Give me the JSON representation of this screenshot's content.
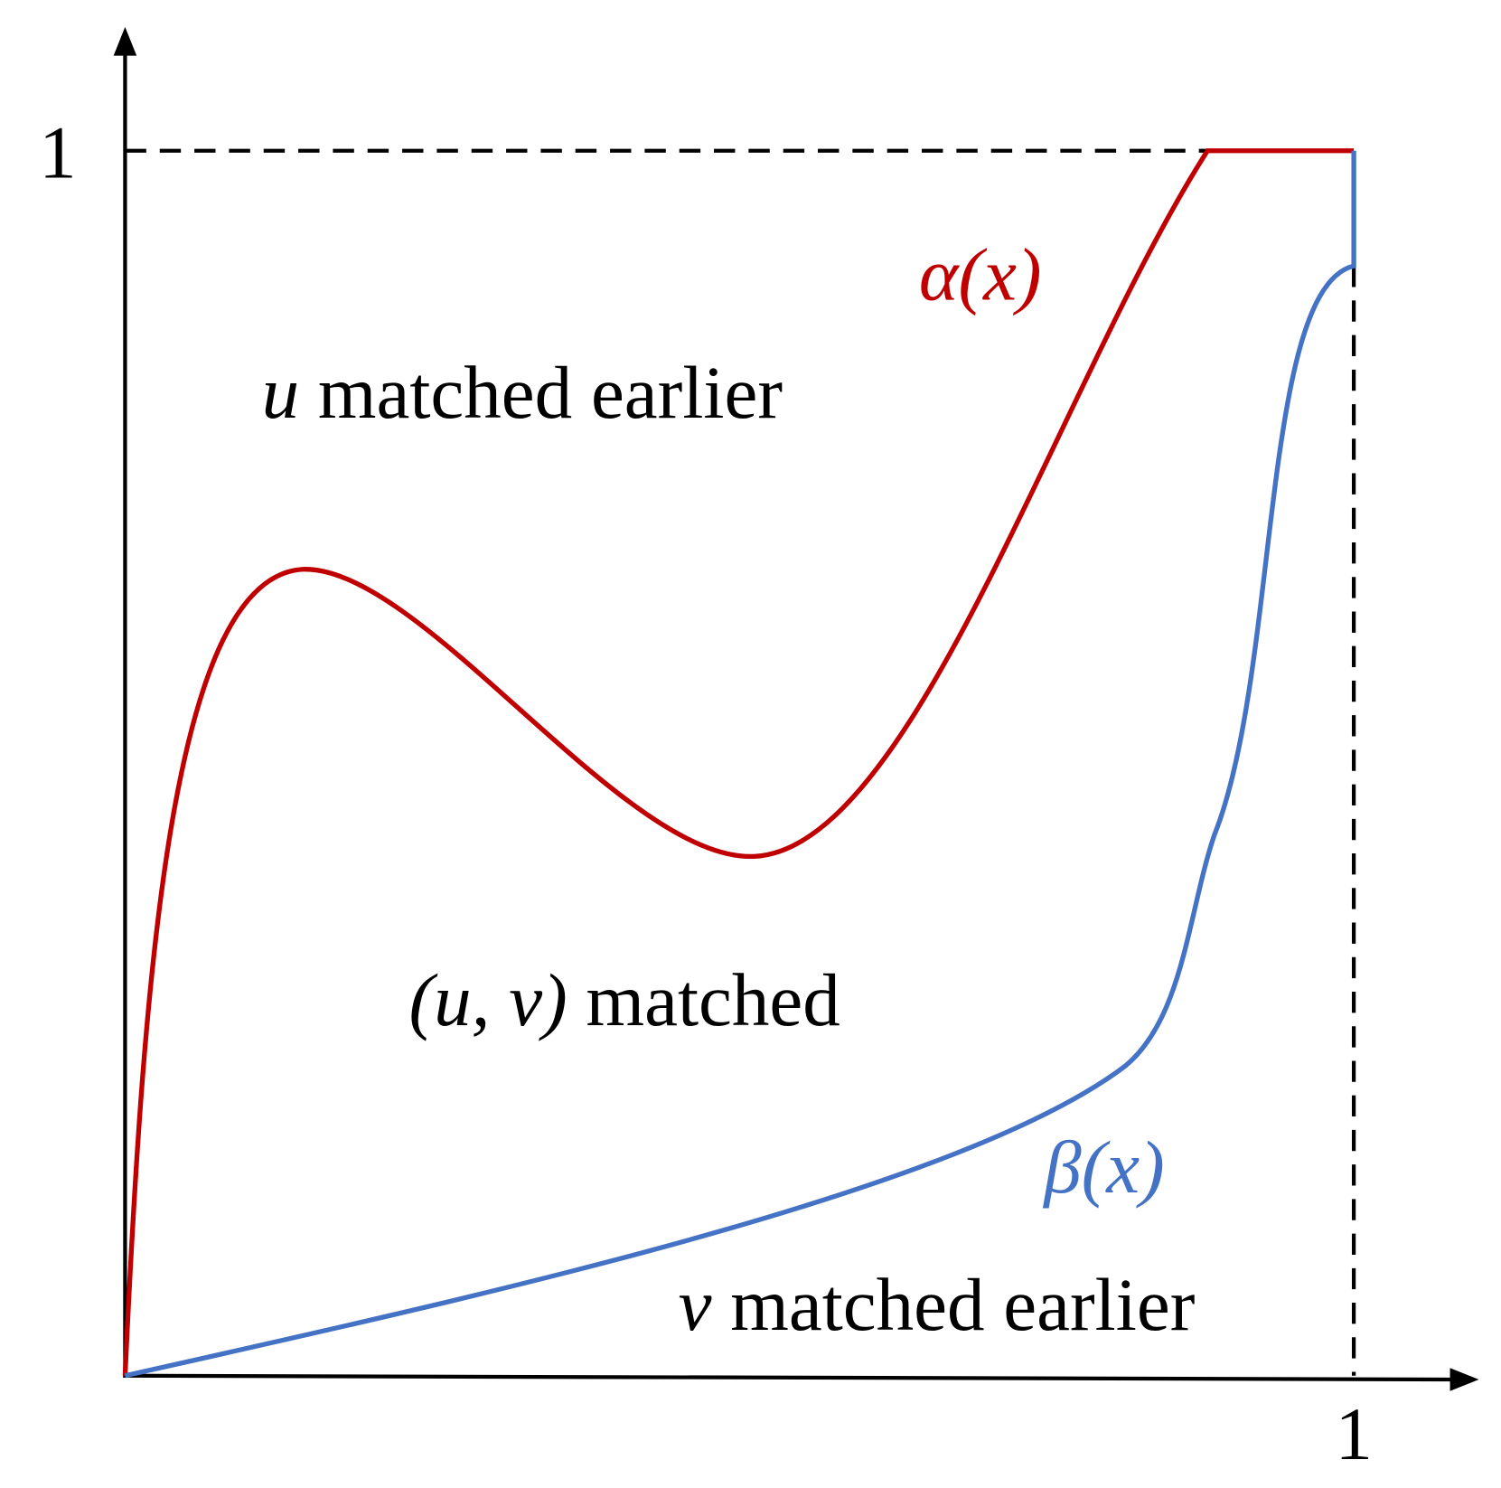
{
  "axes": {
    "y_label": "1",
    "x_label": "1"
  },
  "curves": [
    {
      "label": "α(x)"
    },
    {
      "label": "β(x)"
    }
  ],
  "regions": [
    {
      "variable": "u",
      "text": "matched earlier"
    },
    {
      "variable": "(u, v)",
      "text": "matched"
    },
    {
      "variable": "v",
      "text": "matched earlier"
    }
  ]
}
